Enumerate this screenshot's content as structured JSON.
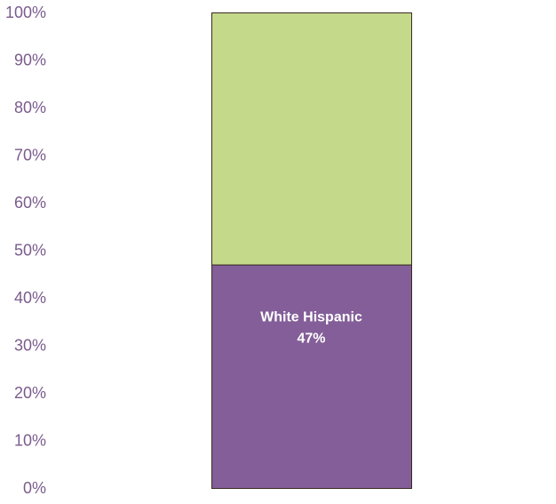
{
  "chart_data": {
    "type": "bar",
    "stacked": true,
    "percent_stacked": true,
    "categories": [
      ""
    ],
    "series": [
      {
        "name": "White Hispanic",
        "values": [
          47
        ],
        "color": "#835E99",
        "label": "47%"
      },
      {
        "name": "",
        "values": [
          53
        ],
        "color": "#C5D98A",
        "label": ""
      }
    ],
    "title": "",
    "xlabel": "",
    "ylabel": "",
    "ylim": [
      0,
      100
    ],
    "yticks": [
      "0%",
      "10%",
      "20%",
      "30%",
      "40%",
      "50%",
      "60%",
      "70%",
      "80%",
      "90%",
      "100%"
    ],
    "grid": false,
    "legend": "none",
    "tick_color": "#7B5B8E",
    "bar_border_color": "#3A2A22",
    "data_label_color": "#FFFFFF"
  }
}
